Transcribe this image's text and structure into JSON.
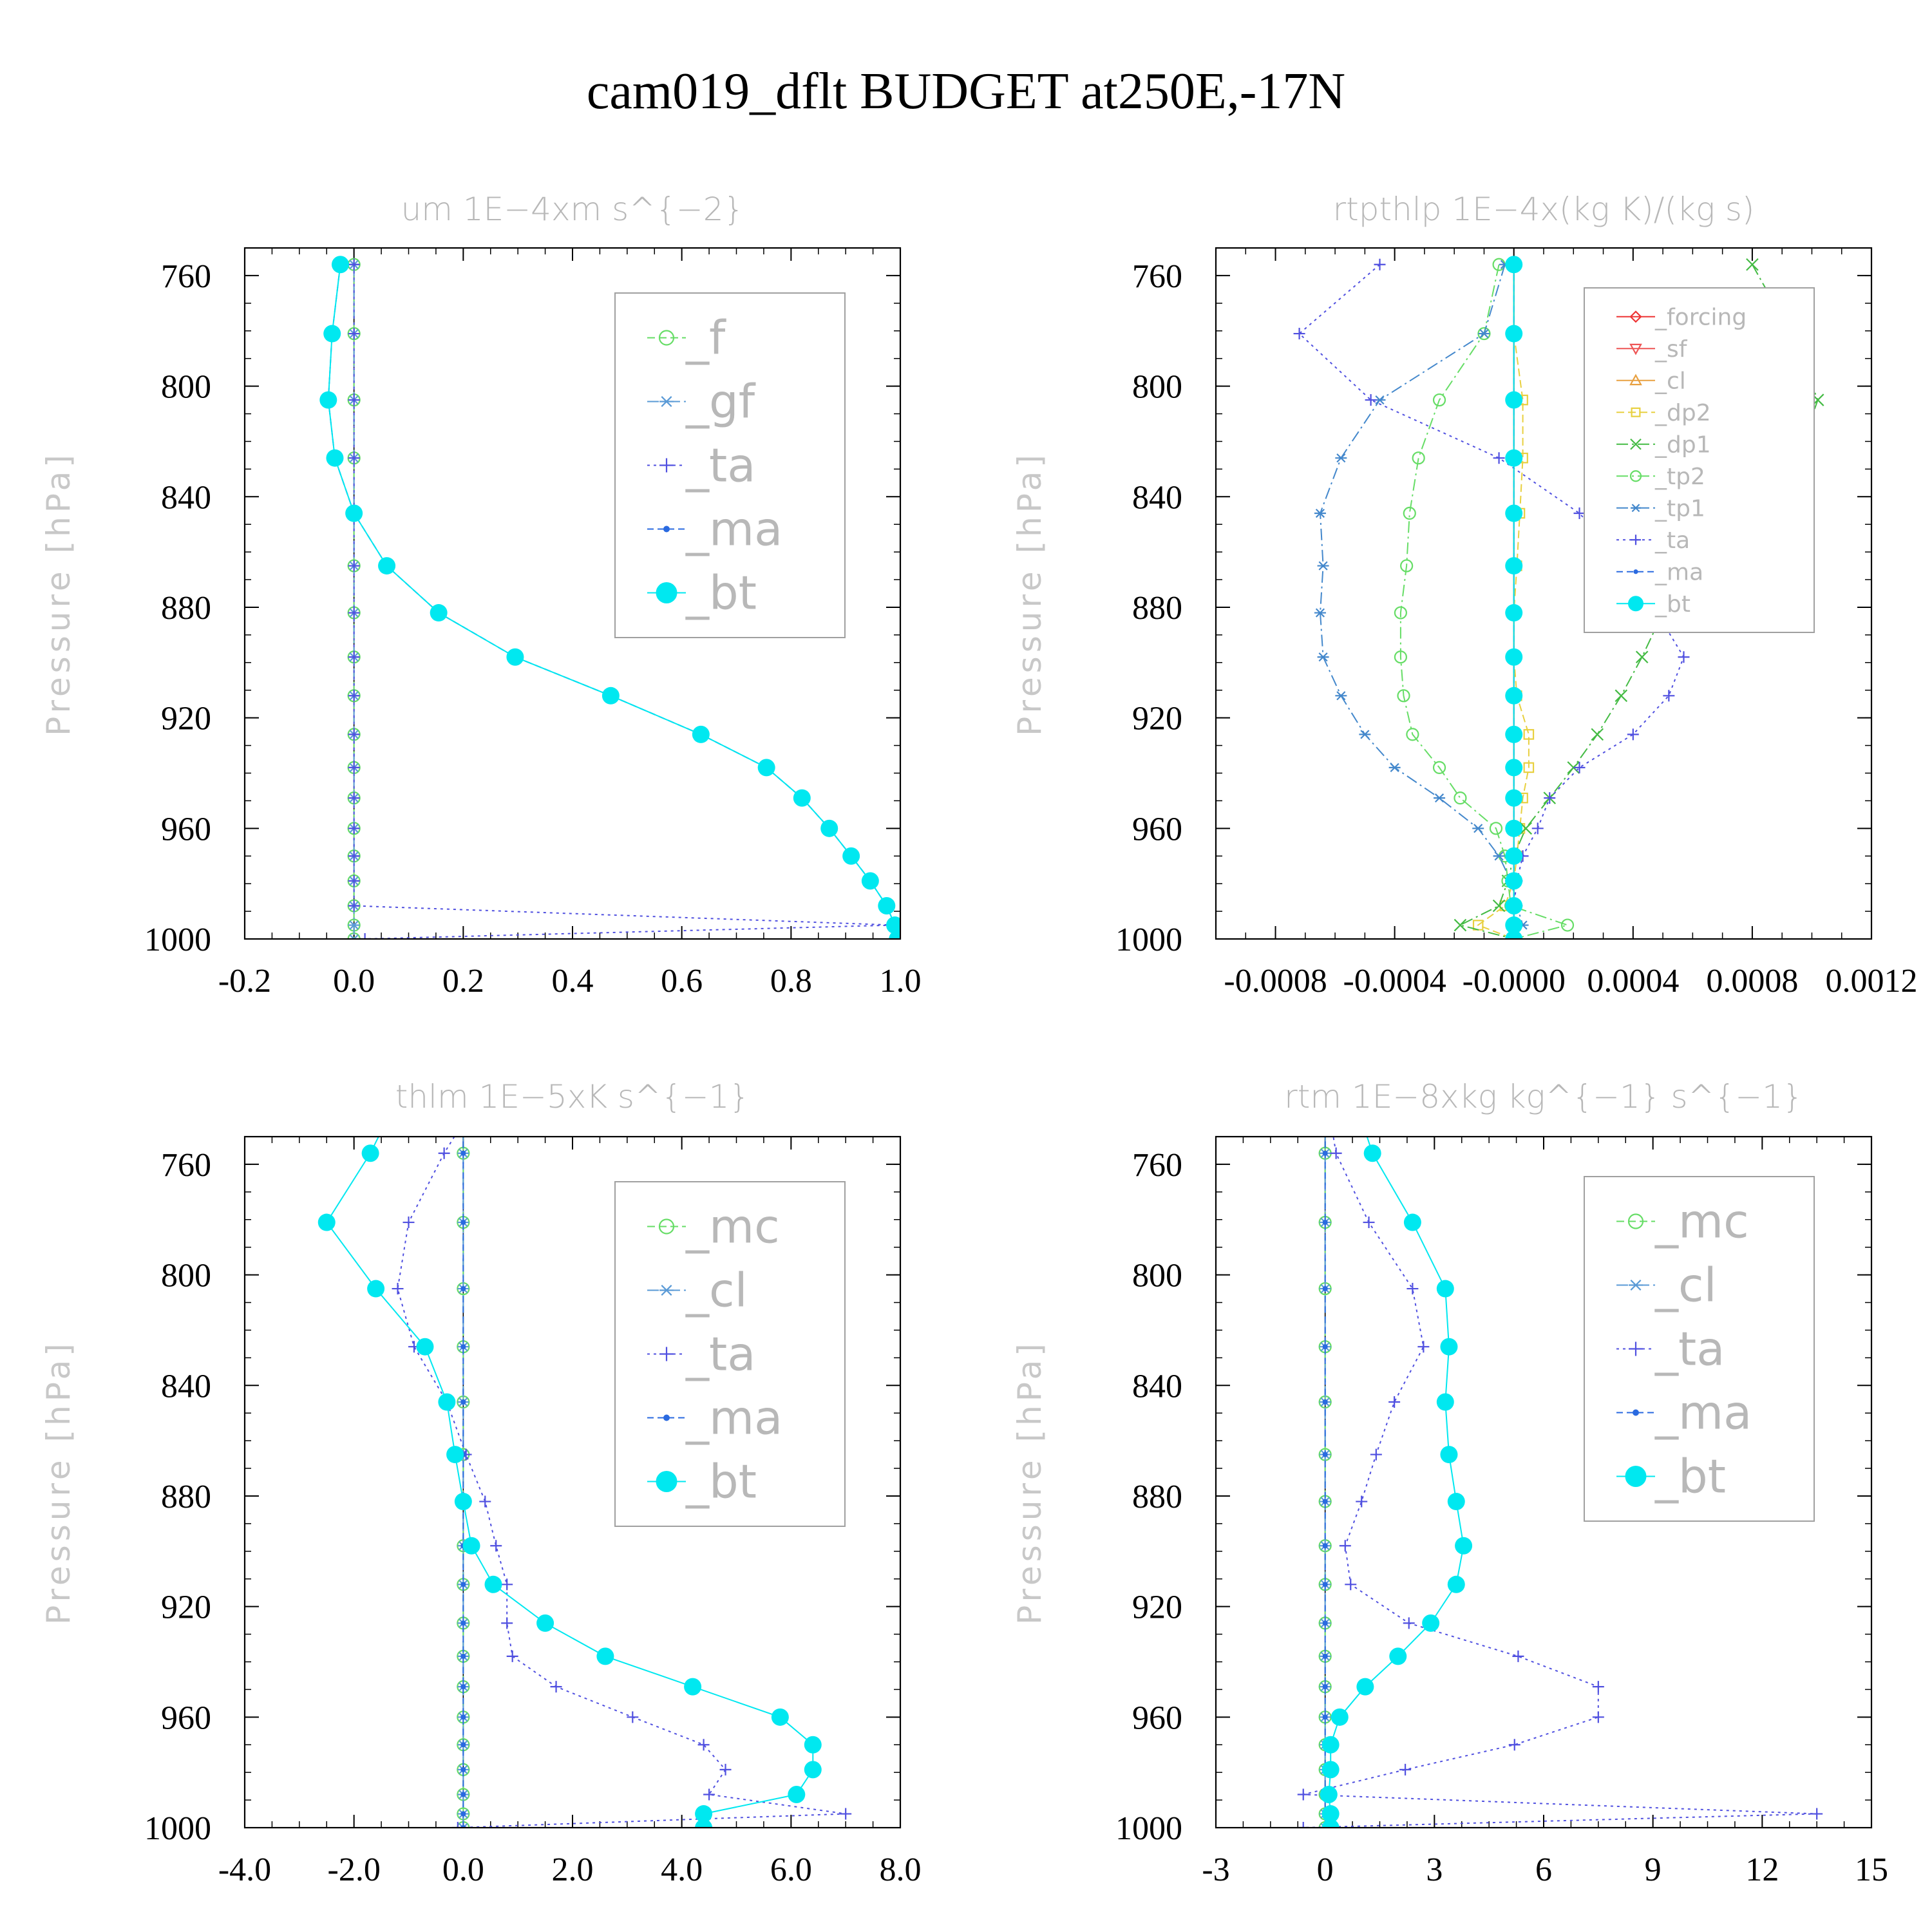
{
  "title": "cam019_dflt  BUDGET at250E,-17N",
  "chart_data": [
    {
      "type": "line",
      "title": "um   1E−4xm s^{−2}",
      "ylabel": "Pressure [hPa]",
      "xlim": [
        -0.2,
        1.0
      ],
      "ylim": [
        1000,
        750
      ],
      "xticks": [
        -0.2,
        0.0,
        0.2,
        0.4,
        0.6,
        0.8,
        1.0
      ],
      "xtick_labels": [
        "-0.2",
        "0.0",
        "0.2",
        "0.4",
        "0.6",
        "0.8",
        "1.0"
      ],
      "yticks": [
        760,
        800,
        840,
        880,
        920,
        960,
        1000
      ],
      "ytick_labels": [
        "760",
        "800",
        "840",
        "880",
        "920",
        "960",
        "1000"
      ],
      "legend_position": "upper-right",
      "legend_font": 72,
      "y": [
        756,
        781,
        805,
        826,
        846,
        865,
        882,
        898,
        912,
        926,
        938,
        949,
        960,
        970,
        979,
        988,
        995,
        1000
      ],
      "series": [
        {
          "name": "_f",
          "color": "#66dd66",
          "marker": "circle-open",
          "dash": "12,6",
          "values": [
            0,
            0,
            0,
            0,
            0,
            0,
            0,
            0,
            0,
            0,
            0,
            0,
            0,
            0,
            0,
            0,
            0,
            0
          ]
        },
        {
          "name": "_gf",
          "color": "#5a9ad6",
          "marker": "asterisk",
          "dash": "18,6,3,6",
          "values": [
            0,
            0,
            0,
            0,
            0,
            0,
            0,
            0,
            0,
            0,
            0,
            0,
            0,
            0,
            0,
            0,
            0,
            0
          ]
        },
        {
          "name": "_ta",
          "color": "#5050e0",
          "marker": "plus",
          "dash": "4,6",
          "values": [
            0,
            0,
            0,
            0,
            0,
            0,
            0,
            0,
            0,
            0,
            0,
            0,
            0,
            0,
            0,
            0,
            0.99,
            0.02
          ]
        },
        {
          "name": "_ma",
          "color": "#2a6ae0",
          "marker": "dot",
          "dash": "10,6",
          "values": [
            -0.025,
            -0.04,
            -0.047,
            -0.035,
            0.0,
            0.06,
            0.155,
            0.295,
            0.47,
            0.635,
            0.755,
            0.82,
            0.87,
            0.91,
            0.945,
            0.975,
            0.99,
            0.995
          ]
        },
        {
          "name": "_bt",
          "color": "#00e8f0",
          "marker": "filled-circle",
          "dash": "",
          "values": [
            -0.025,
            -0.04,
            -0.047,
            -0.035,
            0.0,
            0.06,
            0.155,
            0.295,
            0.47,
            0.635,
            0.755,
            0.82,
            0.87,
            0.91,
            0.945,
            0.975,
            0.99,
            0.995
          ]
        }
      ]
    },
    {
      "type": "line",
      "title": "rtpthlp   1E−4x(kg K)/(kg s)",
      "ylabel": "Pressure [hPa]",
      "xlim": [
        -0.001,
        0.0012
      ],
      "ylim": [
        1000,
        750
      ],
      "xticks": [
        -0.0008,
        -0.0004,
        0.0,
        0.0004,
        0.0008,
        0.0012
      ],
      "xtick_labels": [
        "-0.0008",
        "-0.0004",
        "-0.0000",
        "0.0004",
        "0.0008",
        "0.0012"
      ],
      "yticks": [
        760,
        800,
        840,
        880,
        920,
        960,
        1000
      ],
      "ytick_labels": [
        "760",
        "800",
        "840",
        "880",
        "920",
        "960",
        "1000"
      ],
      "legend_position": "upper-right",
      "legend_font": 36,
      "y": [
        756,
        781,
        805,
        826,
        846,
        865,
        882,
        898,
        912,
        926,
        938,
        949,
        960,
        970,
        979,
        988,
        995,
        1000
      ],
      "series": [
        {
          "name": "_forcing",
          "color": "#ee3333",
          "marker": "diamond-open",
          "dash": "",
          "values": [
            0,
            0,
            0,
            0,
            0,
            0,
            0,
            0,
            0,
            0,
            0,
            0,
            0,
            0,
            0,
            0,
            0,
            0
          ]
        },
        {
          "name": "_sf",
          "color": "#ee5555",
          "marker": "triangle-down-open",
          "dash": "",
          "values": [
            0,
            0,
            0,
            0,
            0,
            0,
            0,
            0,
            0,
            0,
            0,
            0,
            0,
            0,
            0,
            0,
            0,
            0
          ]
        },
        {
          "name": "_cl",
          "color": "#e8a040",
          "marker": "triangle-open",
          "dash": "",
          "values": [
            0,
            0,
            0,
            0,
            0,
            0,
            0,
            0,
            0,
            0,
            0,
            0,
            0,
            0,
            0,
            0,
            0,
            0
          ]
        },
        {
          "name": "_dp2",
          "color": "#e8d040",
          "marker": "square-open",
          "dash": "12,6",
          "values": [
            0,
            0,
            3e-05,
            3e-05,
            2e-05,
            1e-05,
            0,
            0,
            1e-05,
            5e-05,
            5e-05,
            3e-05,
            2e-05,
            1e-05,
            0,
            -3e-05,
            -0.00012,
            0
          ]
        },
        {
          "name": "_dp1",
          "color": "#44bb44",
          "marker": "x",
          "dash": "18,6,3,6",
          "values": [
            0.0008,
            0.00093,
            0.00102,
            0.00095,
            0.00075,
            0.00063,
            0.0005,
            0.00043,
            0.00036,
            0.00028,
            0.0002,
            0.00012,
            4e-05,
            0,
            -2e-05,
            -5e-05,
            -0.00018,
            0
          ]
        },
        {
          "name": "_tp2",
          "color": "#66dd66",
          "marker": "circle-open",
          "dash": "18,6,3,6",
          "values": [
            -5e-05,
            -0.0001,
            -0.00025,
            -0.00032,
            -0.00035,
            -0.00036,
            -0.00038,
            -0.00038,
            -0.00037,
            -0.00034,
            -0.00025,
            -0.00018,
            -6e-05,
            -3e-05,
            -2e-05,
            -1e-05,
            0.00018,
            0
          ]
        },
        {
          "name": "_tp1",
          "color": "#4488cc",
          "marker": "asterisk",
          "dash": "18,6,3,6",
          "values": [
            -3e-05,
            -0.0001,
            -0.00045,
            -0.00058,
            -0.00065,
            -0.00064,
            -0.00065,
            -0.00064,
            -0.00058,
            -0.0005,
            -0.0004,
            -0.00025,
            -0.00012,
            -5e-05,
            -1e-05,
            1e-05,
            3e-05,
            0
          ]
        },
        {
          "name": "_ta",
          "color": "#5050e0",
          "marker": "plus",
          "dash": "4,6",
          "values": [
            -0.00045,
            -0.00072,
            -0.00048,
            -5e-05,
            0.00022,
            0.00038,
            0.00048,
            0.00057,
            0.00052,
            0.0004,
            0.00022,
            0.00012,
            8e-05,
            3e-05,
            1e-05,
            0,
            0,
            0
          ]
        },
        {
          "name": "_ma",
          "color": "#2a6ae0",
          "marker": "dot",
          "dash": "10,6",
          "values": [
            0,
            0,
            0,
            0,
            0,
            0,
            0,
            0,
            0,
            0,
            0,
            0,
            0,
            0,
            0,
            0,
            0,
            0
          ]
        },
        {
          "name": "_bt",
          "color": "#00e8f0",
          "marker": "filled-circle",
          "dash": "",
          "values": [
            0,
            0,
            0,
            0,
            0,
            0,
            0,
            0,
            0,
            0,
            0,
            0,
            0,
            0,
            0,
            0,
            0,
            0
          ]
        }
      ]
    },
    {
      "type": "line",
      "title": "thlm   1E−5xK s^{−1}",
      "ylabel": "Pressure [hPa]",
      "xlim": [
        -4.0,
        8.0
      ],
      "ylim": [
        1000,
        750
      ],
      "xticks": [
        -4,
        -2,
        0,
        2,
        4,
        6,
        8
      ],
      "xtick_labels": [
        "-4.0",
        "-2.0",
        "0.0",
        "2.0",
        "4.0",
        "6.0",
        "8.0"
      ],
      "yticks": [
        760,
        800,
        840,
        880,
        920,
        960,
        1000
      ],
      "ytick_labels": [
        "760",
        "800",
        "840",
        "880",
        "920",
        "960",
        "1000"
      ],
      "legend_position": "upper-right",
      "legend_font": 72,
      "y": [
        748,
        756,
        781,
        805,
        826,
        846,
        865,
        882,
        898,
        912,
        926,
        938,
        949,
        960,
        970,
        979,
        988,
        995,
        1000
      ],
      "series": [
        {
          "name": "_mc",
          "color": "#66dd66",
          "marker": "circle-open",
          "dash": "12,6",
          "values": [
            0,
            0,
            0,
            0,
            0,
            0,
            0,
            0,
            0,
            0,
            0,
            0,
            0,
            0,
            0,
            0,
            0,
            0,
            0
          ]
        },
        {
          "name": "_cl",
          "color": "#5a9ad6",
          "marker": "asterisk",
          "dash": "18,6,3,6",
          "values": [
            0,
            0,
            0,
            0,
            0,
            0,
            0,
            0,
            0,
            0,
            0,
            0,
            0,
            0,
            0,
            0,
            0,
            0,
            0
          ]
        },
        {
          "name": "_ta",
          "color": "#5050e0",
          "marker": "plus",
          "dash": "4,6",
          "values": [
            -0.1,
            -0.35,
            -1.0,
            -1.2,
            -0.9,
            -0.3,
            0.05,
            0.4,
            0.6,
            0.8,
            0.8,
            0.9,
            1.7,
            3.1,
            4.4,
            4.8,
            4.5,
            7.0,
            -0.1
          ]
        },
        {
          "name": "_ma",
          "color": "#2a6ae0",
          "marker": "dot",
          "dash": "10,6",
          "values": [
            0,
            0,
            0,
            0,
            0,
            0,
            0,
            0,
            0,
            0,
            0,
            0,
            0,
            0,
            0,
            0,
            0,
            0,
            0
          ]
        },
        {
          "name": "_bt",
          "color": "#00e8f0",
          "marker": "filled-circle",
          "dash": "",
          "values": [
            -1.5,
            -1.7,
            -2.5,
            -1.6,
            -0.7,
            -0.3,
            -0.15,
            0.0,
            0.15,
            0.55,
            1.5,
            2.6,
            4.2,
            5.8,
            6.4,
            6.4,
            6.1,
            4.4,
            4.4
          ]
        }
      ]
    },
    {
      "type": "line",
      "title": "rtm   1E−8xkg kg^{−1} s^{−1}",
      "ylabel": "Pressure [hPa]",
      "xlim": [
        -3,
        15
      ],
      "ylim": [
        1000,
        750
      ],
      "xticks": [
        -3,
        0,
        3,
        6,
        9,
        12,
        15
      ],
      "xtick_labels": [
        "-3",
        "0",
        "3",
        "6",
        "9",
        "12",
        "15"
      ],
      "yticks": [
        760,
        800,
        840,
        880,
        920,
        960,
        1000
      ],
      "ytick_labels": [
        "760",
        "800",
        "840",
        "880",
        "920",
        "960",
        "1000"
      ],
      "legend_position": "upper-right",
      "legend_font": 72,
      "y": [
        748,
        756,
        781,
        805,
        826,
        846,
        865,
        882,
        898,
        912,
        926,
        938,
        949,
        960,
        970,
        979,
        988,
        995,
        1000
      ],
      "series": [
        {
          "name": "_mc",
          "color": "#66dd66",
          "marker": "circle-open",
          "dash": "12,6",
          "values": [
            0,
            0,
            0,
            0,
            0,
            0,
            0,
            0,
            0,
            0,
            0,
            0,
            0,
            0,
            0,
            0,
            0,
            0,
            0
          ]
        },
        {
          "name": "_cl",
          "color": "#5a9ad6",
          "marker": "asterisk",
          "dash": "18,6,3,6",
          "values": [
            0,
            0,
            0,
            0,
            0,
            0,
            0,
            0,
            0,
            0,
            0,
            0,
            0,
            0,
            0,
            0,
            0,
            0,
            0
          ]
        },
        {
          "name": "_ta",
          "color": "#5050e0",
          "marker": "plus",
          "dash": "4,6",
          "values": [
            0.2,
            0.3,
            1.2,
            2.4,
            2.7,
            1.9,
            1.4,
            1.0,
            0.55,
            0.7,
            2.3,
            5.3,
            7.5,
            7.5,
            5.2,
            2.2,
            -0.6,
            13.5,
            -0.6
          ]
        },
        {
          "name": "_ma",
          "color": "#2a6ae0",
          "marker": "dot",
          "dash": "10,6",
          "values": [
            0,
            0,
            0,
            0,
            0,
            0,
            0,
            0,
            0,
            0,
            0,
            0,
            0,
            0,
            0,
            0,
            0,
            0,
            0
          ]
        },
        {
          "name": "_bt",
          "color": "#00e8f0",
          "marker": "filled-circle",
          "dash": "",
          "values": [
            1.1,
            1.3,
            2.4,
            3.3,
            3.4,
            3.3,
            3.4,
            3.6,
            3.8,
            3.6,
            2.9,
            2.0,
            1.1,
            0.4,
            0.15,
            0.15,
            0.1,
            0.15,
            0.15
          ]
        }
      ]
    }
  ]
}
